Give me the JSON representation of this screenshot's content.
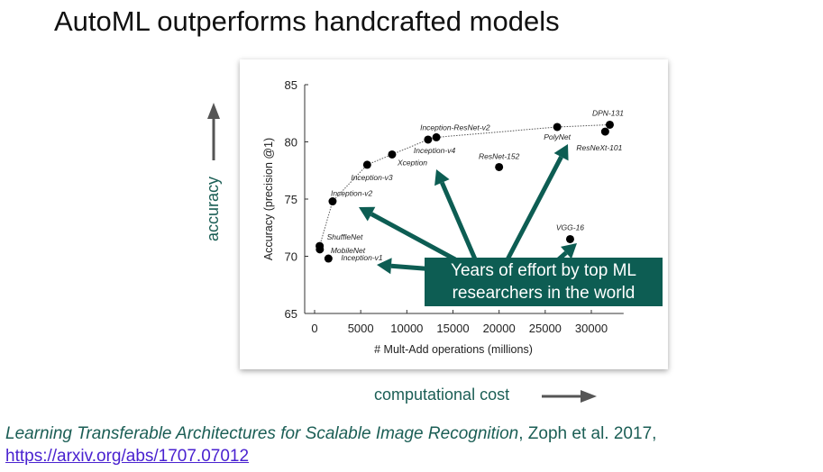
{
  "slide": {
    "title": "AutoML outperforms handcrafted models",
    "y_side_label": "accuracy",
    "x_side_label": "computational cost",
    "callout_line1": "Years of effort by top ML",
    "callout_line2": "researchers in the world",
    "citation_title": "Learning Transferable Architectures for Scalable Image Recognition",
    "citation_authors": ", Zoph et al. 2017,",
    "citation_link": "https://arxiv.org/abs/1707.07012"
  },
  "colors": {
    "teal": "#1b5e55",
    "callout": "#0d5d53",
    "arrow_gray": "#555555",
    "link": "#4a22d0"
  },
  "chart_data": {
    "type": "scatter",
    "title": "",
    "xlabel": "# Mult-Add operations (millions)",
    "ylabel": "Accuracy (precision @1)",
    "xlim": [
      -1000,
      33500
    ],
    "ylim": [
      65,
      85
    ],
    "xticks": [
      0,
      5000,
      10000,
      15000,
      20000,
      25000,
      30000
    ],
    "yticks": [
      65,
      70,
      75,
      80,
      85
    ],
    "grid": false,
    "points": [
      {
        "name": "ShuffleNet",
        "x": 550,
        "y": 70.9
      },
      {
        "name": "MobileNet",
        "x": 570,
        "y": 70.6
      },
      {
        "name": "Inception-v1",
        "x": 1500,
        "y": 69.8
      },
      {
        "name": "Inception-v2",
        "x": 1950,
        "y": 74.8
      },
      {
        "name": "Inception-v3",
        "x": 5700,
        "y": 78.0
      },
      {
        "name": "Xception",
        "x": 8400,
        "y": 78.9
      },
      {
        "name": "Inception-v4",
        "x": 12300,
        "y": 80.2
      },
      {
        "name": "Inception-ResNet-v2",
        "x": 13200,
        "y": 80.4
      },
      {
        "name": "ResNet-152",
        "x": 20000,
        "y": 77.8
      },
      {
        "name": "PolyNet",
        "x": 26300,
        "y": 81.3
      },
      {
        "name": "ResNeXt-101",
        "x": 31500,
        "y": 80.9
      },
      {
        "name": "DPN-131",
        "x": 32000,
        "y": 81.5
      },
      {
        "name": "VGG-16",
        "x": 27700,
        "y": 71.5
      }
    ],
    "frontier": [
      "MobileNet",
      "ShuffleNet",
      "Inception-v2",
      "Inception-v3",
      "Xception",
      "Inception-v4",
      "Inception-ResNet-v2",
      "PolyNet",
      "DPN-131"
    ]
  }
}
